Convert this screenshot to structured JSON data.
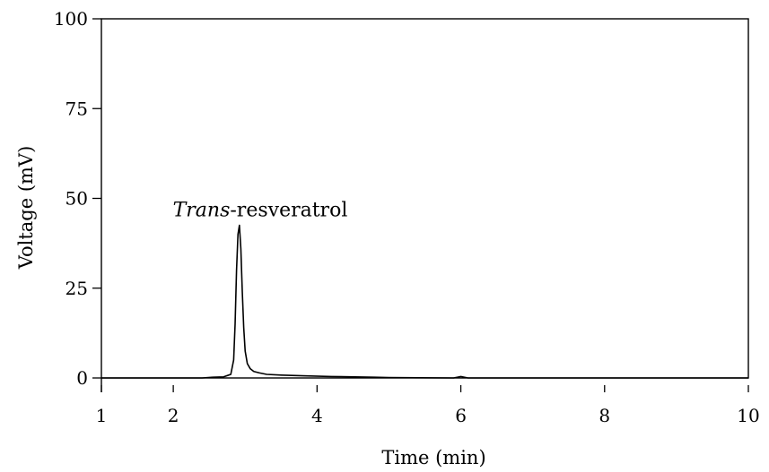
{
  "chart_data": {
    "type": "line",
    "title": "",
    "xlabel": "Time (min)",
    "ylabel": "Voltage (mV)",
    "xlim": [
      1,
      10
    ],
    "ylim": [
      0,
      100
    ],
    "x_ticks": [
      1,
      2,
      4,
      6,
      8,
      10
    ],
    "y_ticks": [
      0,
      25,
      50,
      75,
      100
    ],
    "grid": false,
    "series": [
      {
        "x": [
          1.0,
          2.4,
          2.55,
          2.7,
          2.8,
          2.84,
          2.86,
          2.88,
          2.9,
          2.92,
          2.94,
          2.96,
          2.98,
          3.0,
          3.03,
          3.07,
          3.12,
          3.2,
          3.3,
          3.5,
          3.8,
          4.2,
          4.8,
          5.0,
          5.9,
          6.0,
          6.1,
          7.0,
          8.0,
          9.0,
          10.0
        ],
        "values": [
          0.0,
          0.0,
          0.2,
          0.3,
          1.0,
          5.0,
          15.0,
          30.0,
          40.0,
          42.5,
          36.0,
          24.0,
          14.0,
          7.5,
          4.0,
          2.6,
          1.8,
          1.4,
          1.0,
          0.8,
          0.6,
          0.4,
          0.2,
          0.1,
          0.0,
          0.4,
          0.0,
          0.0,
          0.0,
          0.0,
          0.0
        ]
      }
    ],
    "annotations": [
      {
        "text_italic": "Trans",
        "text": "-resveratrol",
        "x": 2.93,
        "y": 42.5
      }
    ],
    "colors": {
      "line": "#000000",
      "axis": "#000000",
      "background": "#ffffff"
    }
  }
}
